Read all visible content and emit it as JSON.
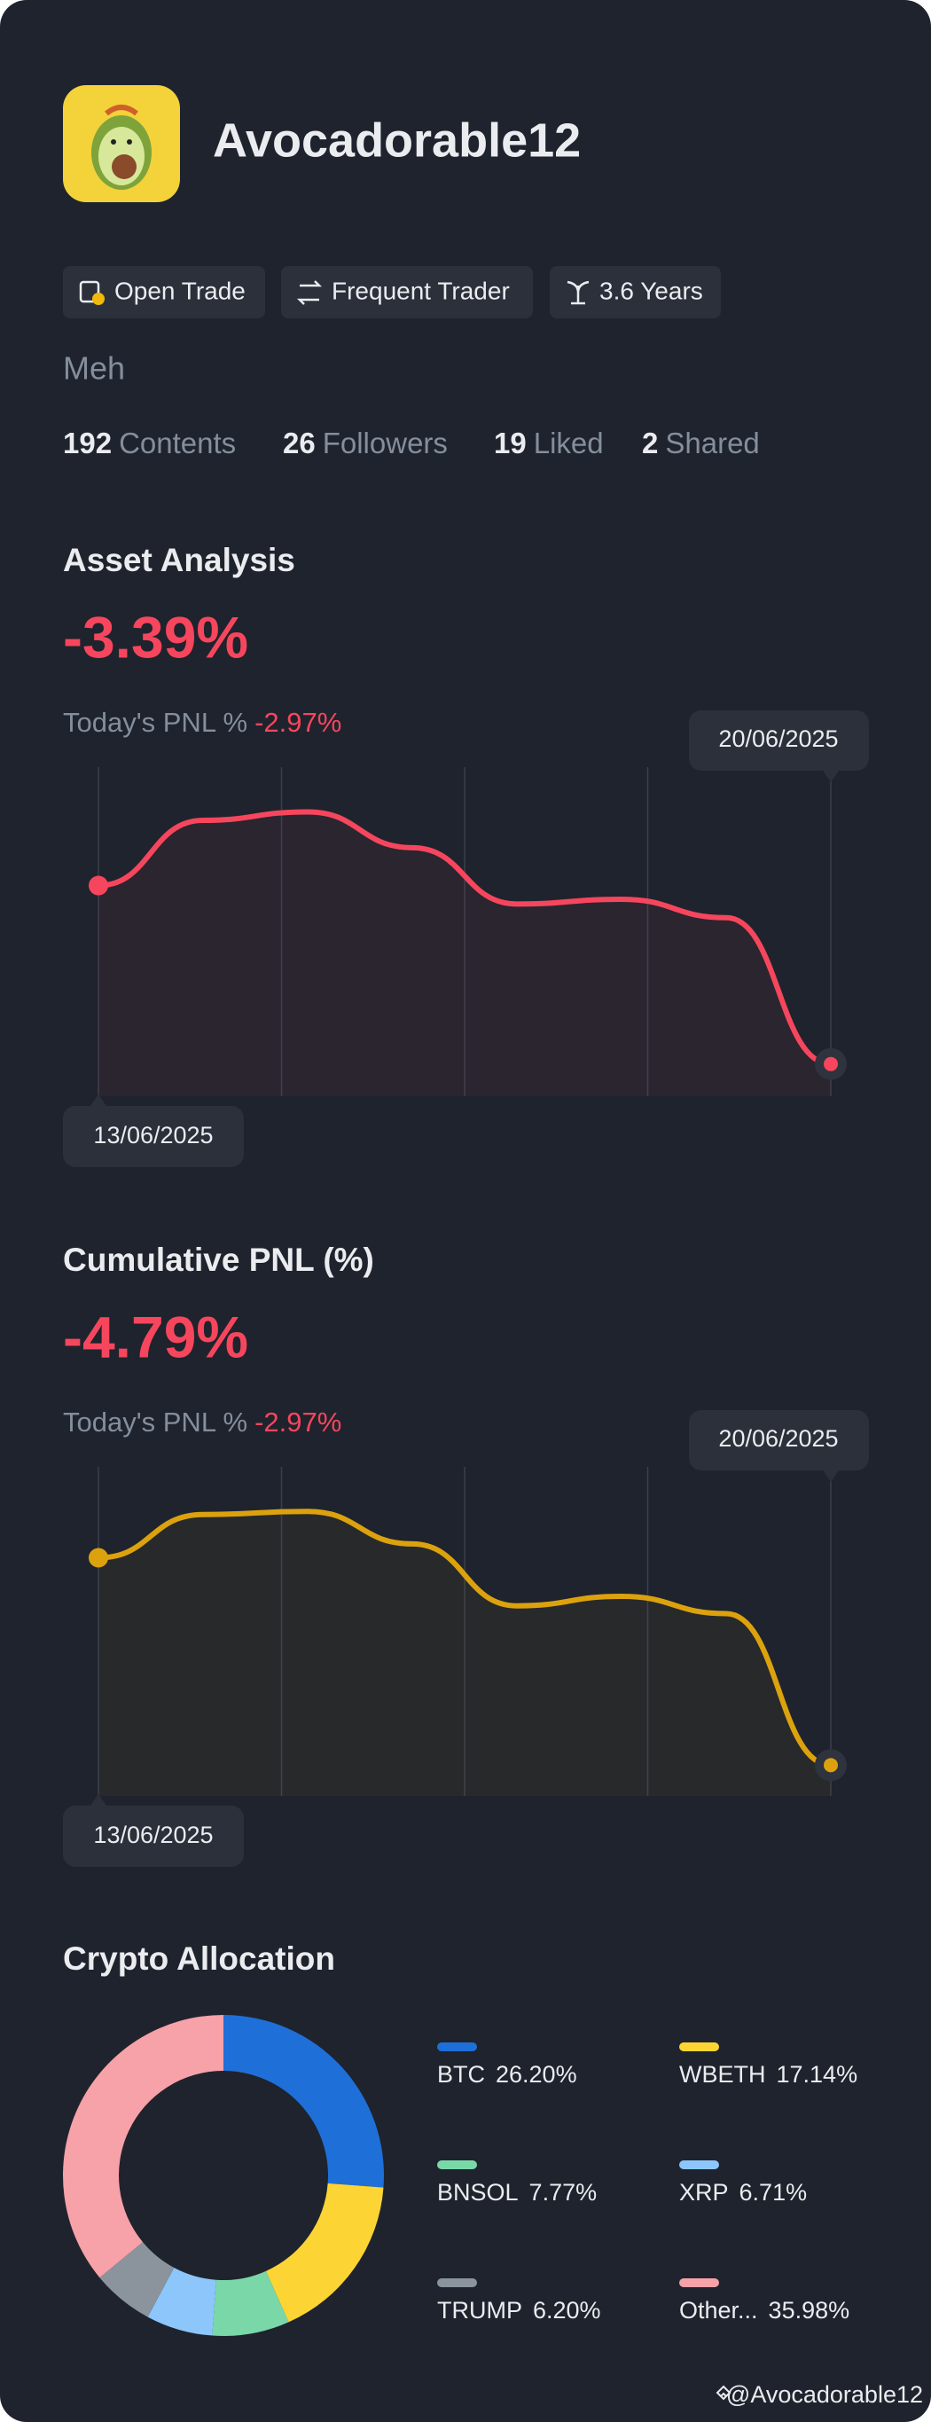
{
  "profile": {
    "name": "Avocadorable12",
    "badges": [
      "Open Trade",
      "Frequent Trader",
      "3.6 Years"
    ],
    "bio": "Meh",
    "stats": [
      {
        "value": 192,
        "label": "Contents"
      },
      {
        "value": 26,
        "label": "Followers"
      },
      {
        "value": 19,
        "label": "Liked"
      },
      {
        "value": 2,
        "label": "Shared"
      }
    ]
  },
  "chart_data": [
    {
      "type": "line",
      "title": "Asset Analysis",
      "headline": "-3.39%",
      "today_label": "Today's PNL %",
      "today_value": "-2.97%",
      "x": [
        "13/06/2025",
        null,
        null,
        null,
        null,
        null,
        null,
        "20/06/2025"
      ],
      "values": [
        0,
        1.24,
        1.4,
        0.72,
        -0.35,
        -0.26,
        -0.61,
        -3.39
      ],
      "color": "#f6465d",
      "ylim": [
        -4,
        2.25
      ]
    },
    {
      "type": "line",
      "title": "Cumulative PNL (%)",
      "headline": "-4.79%",
      "today_label": "Today's PNL %",
      "today_value": "-2.97%",
      "x": [
        "13/06/2025",
        null,
        null,
        null,
        null,
        null,
        null,
        "20/06/2025"
      ],
      "values": [
        0,
        1.0,
        1.07,
        0.32,
        -1.11,
        -0.89,
        -1.29,
        -4.79
      ],
      "color": "#dca20e",
      "ylim": [
        -5.5,
        2.1
      ]
    },
    {
      "type": "donut",
      "title": "Crypto Allocation",
      "categories": [
        "BTC",
        "WBETH",
        "BNSOL",
        "XRP",
        "TRUMP",
        "Other..."
      ],
      "values": [
        26.2,
        17.14,
        7.77,
        6.71,
        6.2,
        35.98
      ],
      "value_labels": [
        "26.20%",
        "17.14%",
        "7.77%",
        "6.71%",
        "6.20%",
        "35.98%"
      ],
      "colors": [
        "#1f6fd8",
        "#fcd535",
        "#7ad8a8",
        "#8cc6fb",
        "#8b939c",
        "#f7a1a9"
      ]
    }
  ],
  "watermark": "@Avocadorable12"
}
